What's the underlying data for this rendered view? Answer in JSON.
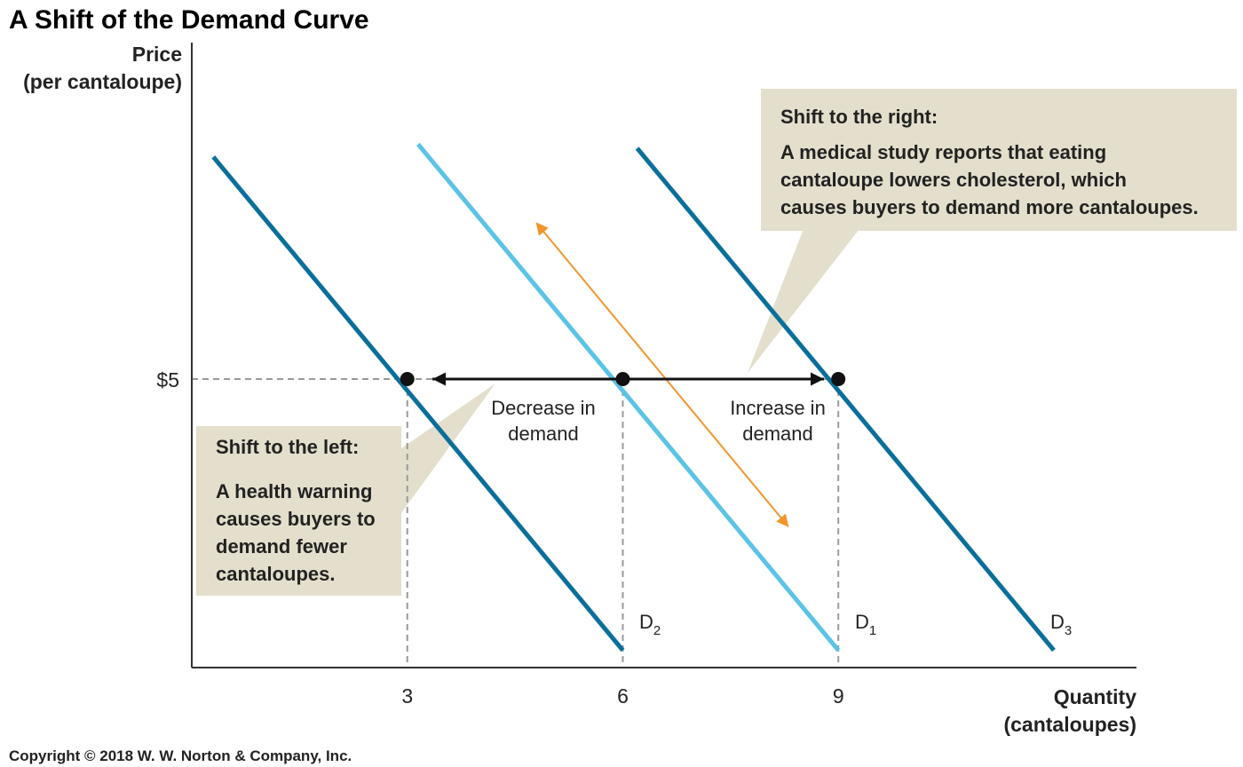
{
  "title": "A Shift of the Demand Curve",
  "copyright": "Copyright © 2018 W. W. Norton & Company, Inc.",
  "colors": {
    "d1": "#5bc3e6",
    "shifted": "#0a6f9a",
    "axis": "#333333",
    "guide": "#9a9a9a",
    "callout_bg": "#e3dfcc",
    "orange": "#f0962d",
    "point": "#111111"
  },
  "chart_data": {
    "type": "line",
    "title": "A Shift of the Demand Curve",
    "ylabel_lines": [
      "Price",
      "(per cantaloupe)"
    ],
    "xlabel_lines": [
      "Quantity",
      "(cantaloupes)"
    ],
    "x_ticks": [
      {
        "value": 3,
        "label": "3"
      },
      {
        "value": 6,
        "label": "6"
      },
      {
        "value": 9,
        "label": "9"
      }
    ],
    "y_ticks": [
      {
        "value": 5,
        "label": "$5"
      }
    ],
    "series": [
      {
        "key": "d2",
        "name": "D",
        "subscript": "2",
        "color_key": "shifted",
        "points": [
          [
            0.3,
            8.85
          ],
          [
            6,
            0.3
          ]
        ]
      },
      {
        "key": "d1",
        "name": "D",
        "subscript": "1",
        "color_key": "d1",
        "points": [
          [
            3.15,
            9.07
          ],
          [
            9,
            0.3
          ]
        ]
      },
      {
        "key": "d3",
        "name": "D",
        "subscript": "3",
        "color_key": "shifted",
        "points": [
          [
            6.2,
            9.0
          ],
          [
            12.0,
            0.3
          ]
        ]
      }
    ],
    "equilibrium_points": [
      {
        "name": "d2-at-5",
        "x": 3,
        "y": 5
      },
      {
        "name": "d1-at-5",
        "x": 6,
        "y": 5
      },
      {
        "name": "d3-at-5",
        "x": 9,
        "y": 5
      }
    ],
    "shift_arrows": [
      {
        "name": "decrease-arrow",
        "from": [
          6,
          5
        ],
        "to": [
          3.35,
          5
        ],
        "label_lines": [
          "Decrease in",
          "demand"
        ]
      },
      {
        "name": "increase-arrow",
        "from": [
          6,
          5
        ],
        "to": [
          8.8,
          5
        ],
        "label_lines": [
          "Increase in",
          "demand"
        ]
      }
    ],
    "movement_arrow": {
      "from": [
        8.3,
        2.45
      ],
      "to": [
        4.8,
        7.7
      ]
    },
    "callouts": [
      {
        "name": "shift-right-callout",
        "heading": "Shift to the right:",
        "body_lines": [
          "A medical study reports that eating",
          "cantaloupe lowers cholesterol, which",
          "causes buyers to demand more cantaloupes."
        ]
      },
      {
        "name": "shift-left-callout",
        "heading": "Shift to the left:",
        "body_lines": [
          "A health warning",
          "causes buyers to",
          "demand fewer",
          "cantaloupes."
        ]
      }
    ],
    "xlim": [
      0,
      13.15
    ],
    "ylim": [
      0,
      10
    ],
    "grid": false,
    "legend": "none"
  }
}
